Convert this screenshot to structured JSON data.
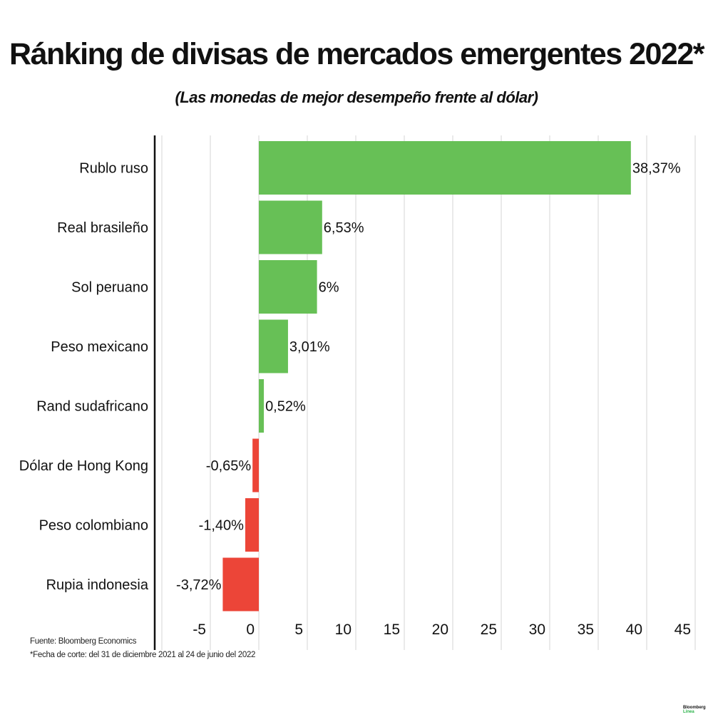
{
  "title": "Ránking de divisas de mercados emergentes 2022*",
  "subtitle": "(Las monedas de mejor desempeño frente al dólar)",
  "source": "Fuente: Bloomberg Economics",
  "note": "*Fecha de corte: del 31 de diciembre 2021 al 24 de junio del 2022",
  "logo": {
    "line1": "Bloomberg",
    "line2": "Línea"
  },
  "colors": {
    "positive": "#67c056",
    "negative": "#ec4538",
    "grid": "#dddddd",
    "axis": "#111111"
  },
  "chart_data": {
    "type": "bar",
    "orientation": "horizontal",
    "categories": [
      "Rublo ruso",
      "Real brasileño",
      "Sol peruano",
      "Peso mexicano",
      "Rand sudafricano",
      "Dólar de Hong Kong",
      "Peso colombiano",
      "Rupia indonesia"
    ],
    "values": [
      38.37,
      6.53,
      6,
      3.01,
      0.52,
      -0.65,
      -1.4,
      -3.72
    ],
    "data_labels": [
      "38,37%",
      "6,53%",
      "6%",
      "3,01%",
      "0,52%",
      "-0,65%",
      "-1,40%",
      "-3,72%"
    ],
    "xlim": [
      -10,
      45
    ],
    "xticks": [
      -5,
      0,
      5,
      10,
      15,
      20,
      25,
      30,
      35,
      40,
      45
    ],
    "xtick_labels": [
      "-5",
      "0",
      "5",
      "10",
      "15",
      "20",
      "25",
      "30",
      "35",
      "40",
      "45"
    ],
    "grid": "vertical"
  }
}
